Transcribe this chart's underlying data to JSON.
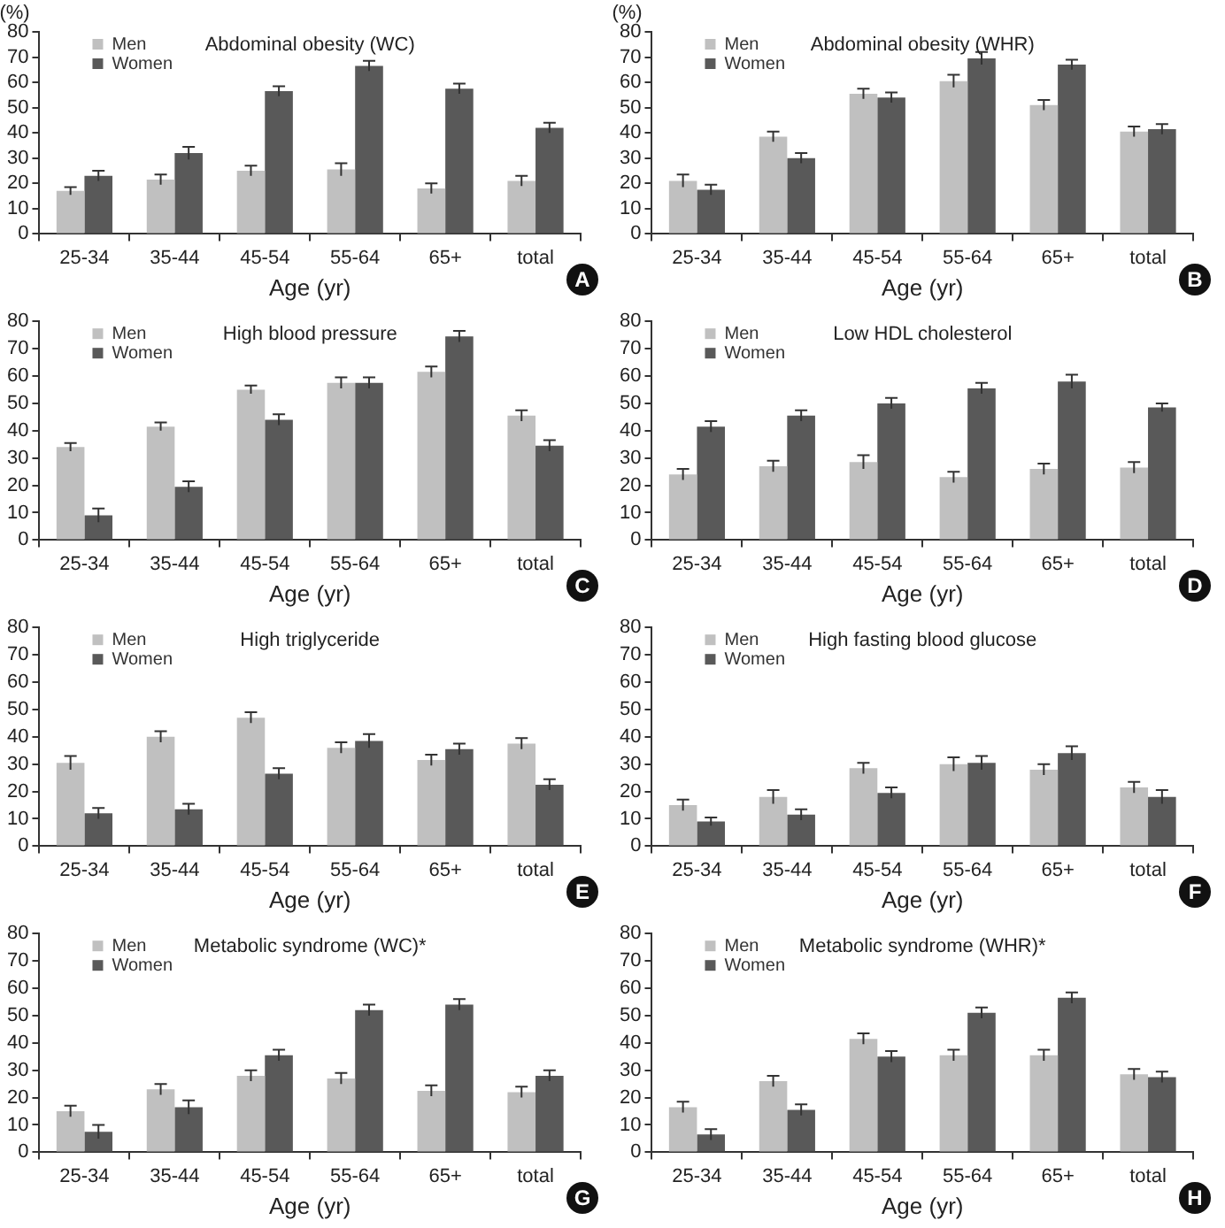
{
  "chart_data": [
    {
      "type": "bar",
      "title": "Abdominal obesity (WC)",
      "xlabel": "Age (yr)",
      "ylabel": "(%)",
      "categories": [
        "25-34",
        "35-44",
        "45-54",
        "55-64",
        "65+",
        "total"
      ],
      "ylim": [
        0,
        80
      ],
      "yticks": [
        0,
        10,
        20,
        30,
        40,
        50,
        60,
        70,
        80
      ],
      "legend": "top left",
      "annotations": [
        "A"
      ],
      "series": [
        {
          "name": "Men",
          "color": "#c0c0c0",
          "values": [
            17,
            21.5,
            25,
            25.5,
            18,
            21
          ],
          "errors": [
            1.5,
            2,
            2,
            2.5,
            2,
            2
          ]
        },
        {
          "name": "Women",
          "color": "#595959",
          "values": [
            23,
            32,
            56.5,
            66.5,
            57.5,
            42
          ],
          "errors": [
            2,
            2.5,
            2,
            2,
            2,
            2
          ]
        }
      ]
    },
    {
      "type": "bar",
      "title": "Abdominal obesity (WHR)",
      "xlabel": "Age (yr)",
      "ylabel": "(%)",
      "categories": [
        "25-34",
        "35-44",
        "45-54",
        "55-64",
        "65+",
        "total"
      ],
      "ylim": [
        0,
        80
      ],
      "yticks": [
        0,
        10,
        20,
        30,
        40,
        50,
        60,
        70,
        80
      ],
      "legend": "top left",
      "annotations": [
        "B"
      ],
      "series": [
        {
          "name": "Men",
          "color": "#c0c0c0",
          "values": [
            21,
            38.5,
            55.5,
            60.5,
            51,
            40.5
          ],
          "errors": [
            2.5,
            2,
            2,
            2.5,
            2,
            2
          ]
        },
        {
          "name": "Women",
          "color": "#595959",
          "values": [
            17.5,
            30,
            54,
            69.5,
            67,
            41.5
          ],
          "errors": [
            2,
            2,
            2,
            2.5,
            2,
            2
          ]
        }
      ]
    },
    {
      "type": "bar",
      "title": "High blood pressure",
      "xlabel": "Age (yr)",
      "categories": [
        "25-34",
        "35-44",
        "45-54",
        "55-64",
        "65+",
        "total"
      ],
      "ylim": [
        0,
        80
      ],
      "yticks": [
        0,
        10,
        20,
        30,
        40,
        50,
        60,
        70,
        80
      ],
      "legend": "top left",
      "annotations": [
        "C"
      ],
      "series": [
        {
          "name": "Men",
          "color": "#c0c0c0",
          "values": [
            34,
            41.5,
            55,
            57.5,
            61.5,
            45.5
          ],
          "errors": [
            1.5,
            1.5,
            1.5,
            2,
            2,
            2
          ]
        },
        {
          "name": "Women",
          "color": "#595959",
          "values": [
            9,
            19.5,
            44,
            57.5,
            74.5,
            34.5
          ],
          "errors": [
            2.5,
            2,
            2,
            2,
            2,
            2
          ]
        }
      ]
    },
    {
      "type": "bar",
      "title": "Low HDL cholesterol",
      "xlabel": "Age (yr)",
      "categories": [
        "25-34",
        "35-44",
        "45-54",
        "55-64",
        "65+",
        "total"
      ],
      "ylim": [
        0,
        80
      ],
      "yticks": [
        0,
        10,
        20,
        30,
        40,
        50,
        60,
        70,
        80
      ],
      "legend": "top left",
      "annotations": [
        "D"
      ],
      "series": [
        {
          "name": "Men",
          "color": "#c0c0c0",
          "values": [
            24,
            27,
            28.5,
            23,
            26,
            26.5
          ],
          "errors": [
            2,
            2,
            2.5,
            2,
            2,
            2
          ]
        },
        {
          "name": "Women",
          "color": "#595959",
          "values": [
            41.5,
            45.5,
            50,
            55.5,
            58,
            48.5
          ],
          "errors": [
            2,
            2,
            2,
            2,
            2.5,
            1.5
          ]
        }
      ]
    },
    {
      "type": "bar",
      "title": "High triglyceride",
      "xlabel": "Age (yr)",
      "categories": [
        "25-34",
        "35-44",
        "45-54",
        "55-64",
        "65+",
        "total"
      ],
      "ylim": [
        0,
        80
      ],
      "yticks": [
        0,
        10,
        20,
        30,
        40,
        50,
        60,
        70,
        80
      ],
      "legend": "top left",
      "annotations": [
        "E"
      ],
      "series": [
        {
          "name": "Men",
          "color": "#c0c0c0",
          "values": [
            30.5,
            40,
            47,
            36,
            31.5,
            37.5
          ],
          "errors": [
            2.5,
            2,
            2,
            2,
            2,
            2
          ]
        },
        {
          "name": "Women",
          "color": "#595959",
          "values": [
            12,
            13.5,
            26.5,
            38.5,
            35.5,
            22.5
          ],
          "errors": [
            2,
            2,
            2,
            2.5,
            2,
            2
          ]
        }
      ]
    },
    {
      "type": "bar",
      "title": "High fasting blood glucose",
      "xlabel": "Age (yr)",
      "categories": [
        "25-34",
        "35-44",
        "45-54",
        "55-64",
        "65+",
        "total"
      ],
      "ylim": [
        0,
        80
      ],
      "yticks": [
        0,
        10,
        20,
        30,
        40,
        50,
        60,
        70,
        80
      ],
      "legend": "top left",
      "annotations": [
        "F"
      ],
      "series": [
        {
          "name": "Men",
          "color": "#c0c0c0",
          "values": [
            15,
            18,
            28.5,
            30,
            28,
            21.5
          ],
          "errors": [
            2,
            2.5,
            2,
            2.5,
            2,
            2
          ]
        },
        {
          "name": "Women",
          "color": "#595959",
          "values": [
            9,
            11.5,
            19.5,
            30.5,
            34,
            18
          ],
          "errors": [
            1.5,
            2,
            2,
            2.5,
            2.5,
            2.5
          ]
        }
      ]
    },
    {
      "type": "bar",
      "title": "Metabolic syndrome (WC)*",
      "xlabel": "Age (yr)",
      "categories": [
        "25-34",
        "35-44",
        "45-54",
        "55-64",
        "65+",
        "total"
      ],
      "ylim": [
        0,
        80
      ],
      "yticks": [
        0,
        10,
        20,
        30,
        40,
        50,
        60,
        70,
        80
      ],
      "legend": "top left",
      "annotations": [
        "G"
      ],
      "series": [
        {
          "name": "Men",
          "color": "#c0c0c0",
          "values": [
            15,
            23,
            28,
            27,
            22.5,
            22
          ],
          "errors": [
            2,
            2,
            2,
            2,
            2,
            2
          ]
        },
        {
          "name": "Women",
          "color": "#595959",
          "values": [
            7.5,
            16.5,
            35.5,
            52,
            54,
            28
          ],
          "errors": [
            2.5,
            2.5,
            2,
            2,
            2,
            2
          ]
        }
      ]
    },
    {
      "type": "bar",
      "title": "Metabolic syndrome (WHR)*",
      "xlabel": "Age (yr)",
      "categories": [
        "25-34",
        "35-44",
        "45-54",
        "55-64",
        "65+",
        "total"
      ],
      "ylim": [
        0,
        80
      ],
      "yticks": [
        0,
        10,
        20,
        30,
        40,
        50,
        60,
        70,
        80
      ],
      "legend": "top left",
      "annotations": [
        "H"
      ],
      "series": [
        {
          "name": "Men",
          "color": "#c0c0c0",
          "values": [
            16.5,
            26,
            41.5,
            35.5,
            35.5,
            28.5
          ],
          "errors": [
            2,
            2,
            2,
            2,
            2,
            2
          ]
        },
        {
          "name": "Women",
          "color": "#595959",
          "values": [
            6.5,
            15.5,
            35,
            51,
            56.5,
            27.5
          ],
          "errors": [
            2,
            2,
            2,
            2,
            2,
            2
          ]
        }
      ]
    }
  ]
}
